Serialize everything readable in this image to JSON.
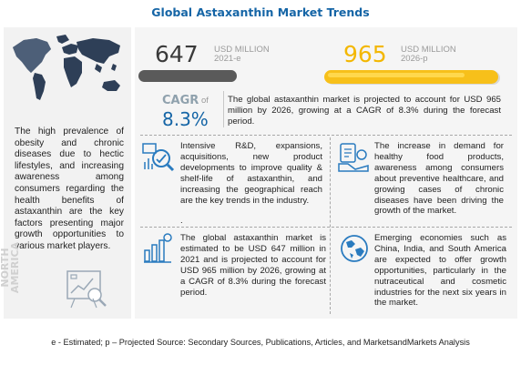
{
  "title": "Global Astaxanthin Market Trends",
  "region_label": "NORTH AMERICA",
  "drivers_text": "The high prevalence of obesity and chronic diseases due to hectic lifestyles, and increasing awareness among consumers regarding the health benefits of astaxanthin are the key factors presenting major growth opportunities to various market players.",
  "chart_data": {
    "type": "bar",
    "categories": [
      "2021-e",
      "2026-p"
    ],
    "values": [
      647,
      965
    ],
    "unit": "USD MILLION",
    "cagr": "8.3%",
    "colors": [
      "#5a5a5a",
      "#f7c01a"
    ]
  },
  "metrics": {
    "left_value": "647",
    "left_unit": "USD MILLION",
    "left_year": "2021-e",
    "right_value": "965",
    "right_unit": "USD MILLION",
    "right_year": "2026-p",
    "cagr_label": "CAGR",
    "cagr_of": "of",
    "cagr_value": "8.3%"
  },
  "paragraphs": {
    "cagr_text": "The global astaxanthin market is projected to account for USD 965 million by 2026, growing at a CAGR of 8.3% during the forecast period.",
    "rd_text": "Intensive R&D, expansions, acquisitions, new product developments to improve quality & shelf-life of astaxanthin, and increasing the geographical reach are the key trends in the industry.",
    "rd_dot": ".",
    "increase_text": "The increase in demand for healthy food products, awareness among consumers about preventive healthcare, and growing cases of chronic diseases have been driving the growth of the market.",
    "estimate_text": "The global astaxanthin market is estimated to be USD 647 million in 2021 and is projected to account for USD 965 million by 2026, growing at a CAGR of 8.3% during the forecast period.",
    "emerging_text": "Emerging economies such as China, India, and South America are expected to offer growth opportunities, particularly in the nutraceutical and cosmetic industries for the next six years in the market."
  },
  "icons": {
    "world_map": "world-map-icon",
    "analytics": "analytics-icon",
    "research": "research-icon",
    "healthy_food": "healthy-food-icon",
    "market_growth": "bar-growth-icon",
    "globe": "globe-icon"
  },
  "colors": {
    "title": "#1565a6",
    "accent_yellow": "#f7c01a",
    "dark_bar": "#5a5a5a",
    "panel_bg": "#f2f2f2",
    "icon_blue": "#2a7bbf"
  },
  "footer": "e - Estimated; p – Projected Source: Secondary Sources, Publications, Articles, and MarketsandMarkets Analysis"
}
